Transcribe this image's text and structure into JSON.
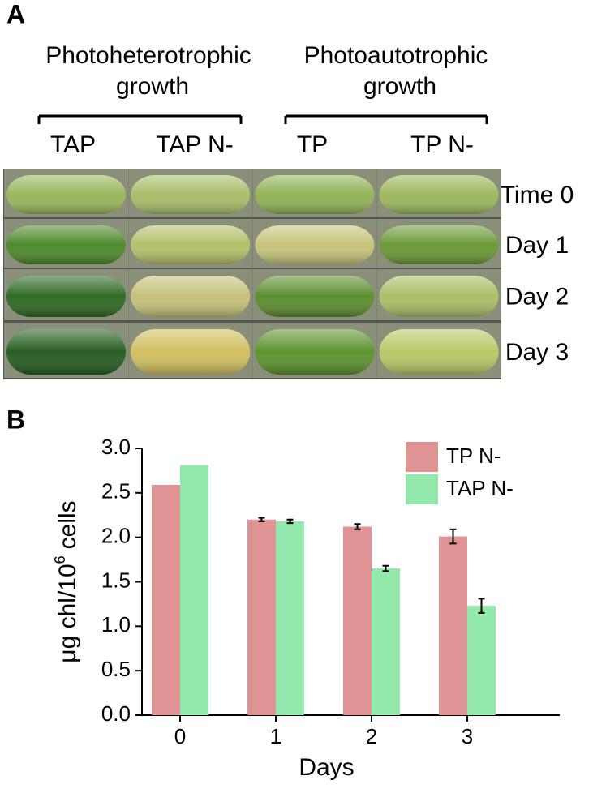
{
  "panel_a": {
    "label": "A",
    "groups": [
      {
        "lines": [
          "Photoheterotrophic",
          "growth"
        ]
      },
      {
        "lines": [
          "Photoautotrophic",
          "growth"
        ]
      }
    ],
    "columns": [
      "TAP",
      "TAP N-",
      "TP",
      "TP N-"
    ],
    "rows": [
      "Time 0",
      "Day 1",
      "Day 2",
      "Day 3"
    ]
  },
  "panel_b_label": "B",
  "chart_data": {
    "type": "bar",
    "y_label": {
      "text": "μg chl/10",
      "superscript": "6",
      "suffix": "cells"
    },
    "x_label": "Days",
    "categories": [
      "0",
      "1",
      "2",
      "3"
    ],
    "series": [
      {
        "name": "TP N-",
        "color": "#e09395",
        "values": [
          2.59,
          2.2,
          2.12,
          2.01
        ],
        "errors": [
          null,
          0.02,
          0.03,
          0.08
        ]
      },
      {
        "name": "TAP N-",
        "color": "#93e8ab",
        "values": [
          2.81,
          2.18,
          1.65,
          1.23
        ],
        "errors": [
          null,
          0.02,
          0.03,
          0.08
        ]
      }
    ],
    "ylim": [
      0,
      3
    ],
    "yticks": [
      {
        "value": 0,
        "label": "0.0"
      },
      {
        "value": 0.5,
        "label": "0.5"
      },
      {
        "value": 1,
        "label": "1.0"
      },
      {
        "value": 1.5,
        "label": "1.5"
      },
      {
        "value": 2,
        "label": "2.0"
      },
      {
        "value": 2.5,
        "label": "2.5"
      },
      {
        "value": 3,
        "label": "3.0"
      }
    ],
    "legend": "upper right"
  }
}
